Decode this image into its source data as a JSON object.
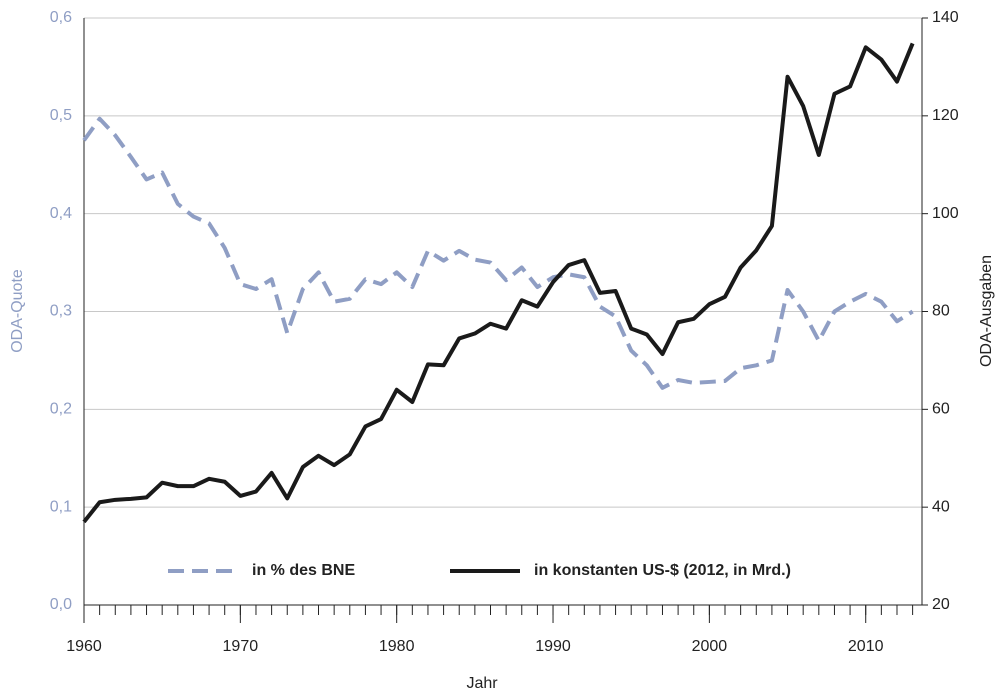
{
  "chart_data": {
    "type": "line",
    "x": [
      1960,
      1961,
      1962,
      1963,
      1964,
      1965,
      1966,
      1967,
      1968,
      1969,
      1970,
      1971,
      1972,
      1973,
      1974,
      1975,
      1976,
      1977,
      1978,
      1979,
      1980,
      1981,
      1982,
      1983,
      1984,
      1985,
      1986,
      1987,
      1988,
      1989,
      1990,
      1991,
      1992,
      1993,
      1994,
      1995,
      1996,
      1997,
      1998,
      1999,
      2000,
      2001,
      2002,
      2003,
      2004,
      2005,
      2006,
      2007,
      2008,
      2009,
      2010,
      2011,
      2012,
      2013
    ],
    "series": [
      {
        "name": "in % des BNE",
        "color": "#8f9ec4",
        "dashed": true,
        "values": [
          0.475,
          0.497,
          0.48,
          0.458,
          0.435,
          0.442,
          0.41,
          0.397,
          0.39,
          0.365,
          0.328,
          0.323,
          0.333,
          0.278,
          0.323,
          0.34,
          0.31,
          0.313,
          0.333,
          0.328,
          0.34,
          0.325,
          0.362,
          0.352,
          0.362,
          0.353,
          0.35,
          0.332,
          0.345,
          0.325,
          0.335,
          0.338,
          0.335,
          0.305,
          0.295,
          0.26,
          0.245,
          0.222,
          0.23,
          0.227,
          0.228,
          0.229,
          0.242,
          0.245,
          0.25,
          0.322,
          0.3,
          0.27,
          0.3,
          0.31,
          0.318,
          0.31,
          0.29,
          0.3
        ]
      },
      {
        "name": "in konstanten US-$ (2012, in Mrd.)",
        "color": "#1a1a1a",
        "axis": "y2",
        "values": [
          37,
          41,
          41.5,
          41.7,
          42,
          45,
          44.3,
          44.3,
          45.8,
          45.2,
          42.3,
          43.2,
          47,
          41.8,
          48.2,
          50.5,
          48.6,
          50.8,
          56.5,
          58,
          64,
          61.5,
          69.2,
          69,
          74.5,
          75.5,
          77.5,
          76.5,
          82.3,
          81,
          86,
          89.5,
          90.5,
          83.8,
          84.2,
          76.5,
          75.3,
          71.3,
          77.8,
          78.5,
          81.5,
          83,
          89,
          92.5,
          97.5,
          128,
          122,
          112,
          124.5,
          126,
          134,
          131.5,
          127,
          134.8
        ]
      }
    ],
    "xlabel": "Jahr",
    "ylabel": "ODA-Quote",
    "y2label": "ODA-Ausgaben",
    "xlim": [
      1960,
      2013.6
    ],
    "xticks": [
      1960,
      1970,
      1980,
      1990,
      2000,
      2010
    ],
    "ylim": [
      0,
      0.6
    ],
    "yticks": [
      {
        "value": 0,
        "label": "0,0"
      },
      {
        "value": 0.1,
        "label": "0,1"
      },
      {
        "value": 0.2,
        "label": "0,2"
      },
      {
        "value": 0.3,
        "label": "0,3"
      },
      {
        "value": 0.4,
        "label": "0,4"
      },
      {
        "value": 0.5,
        "label": "0,5"
      },
      {
        "value": 0.6,
        "label": "0,6"
      }
    ],
    "y2lim": [
      20,
      140
    ],
    "y2ticks": [
      20,
      40,
      60,
      80,
      100,
      120,
      140
    ],
    "grid": true,
    "legend": "lower center"
  }
}
